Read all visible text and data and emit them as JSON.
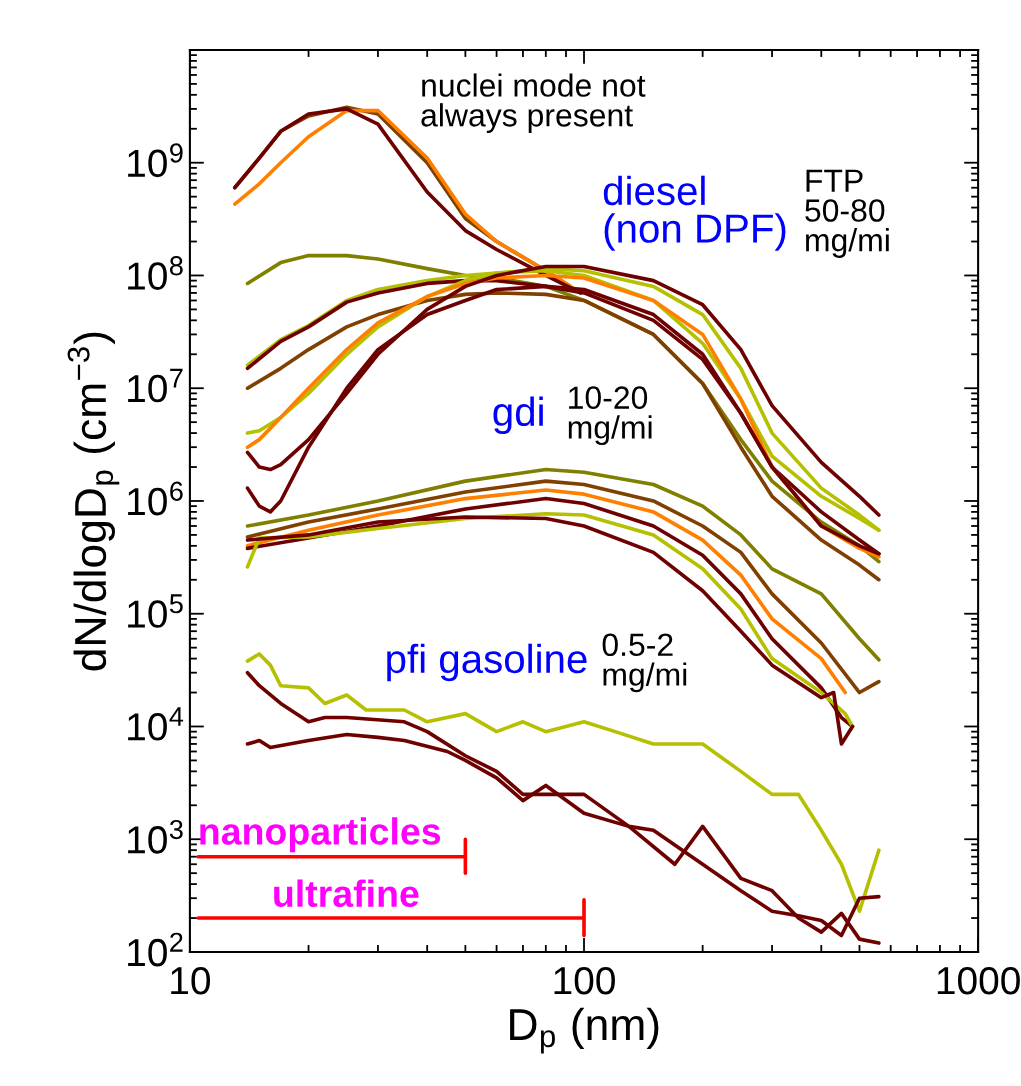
{
  "chart_data": {
    "type": "line",
    "log": "xy",
    "grid": false,
    "xlabel": "D$_{p}$ (nm)",
    "ylabel": "dN/dlogD$_{p}$ (cm$^{−3}$)",
    "xlim": [
      10,
      1000
    ],
    "xticks": [
      10,
      100,
      1000
    ],
    "ylim": [
      100,
      10000000000
    ],
    "yticks": [
      {
        "value": 100,
        "label": "10$^{2}$"
      },
      {
        "value": 1000,
        "label": "10$^{3}$"
      },
      {
        "value": 10000,
        "label": "10$^{4}$"
      },
      {
        "value": 100000,
        "label": "10$^{5}$"
      },
      {
        "value": 1000000,
        "label": "10$^{6}$"
      },
      {
        "value": 10000000,
        "label": "10$^{7}$"
      },
      {
        "value": 100000000,
        "label": "10$^{8}$"
      },
      {
        "value": 1000000000,
        "label": "10$^{9}$"
      }
    ],
    "series": [
      {
        "color": "#804000",
        "x": [
          13,
          15,
          17,
          20,
          25,
          30,
          40,
          50,
          60,
          80,
          98
        ],
        "values": [
          600000000.0,
          1100000000.0,
          1900000000.0,
          2600000000.0,
          3100000000.0,
          2700000000.0,
          1000000000.0,
          320000000.0,
          200000000.0,
          110000000.0,
          70000000.0
        ]
      },
      {
        "color": "#ff8000",
        "x": [
          13,
          15,
          17,
          20,
          25,
          30,
          40,
          50,
          60,
          80,
          98
        ],
        "values": [
          430000000.0,
          650000000.0,
          1000000000.0,
          1700000000.0,
          2900000000.0,
          2900000000.0,
          1100000000.0,
          350000000.0,
          200000000.0,
          110000000.0,
          70000000.0
        ]
      },
      {
        "color": "#6e0000",
        "x": [
          13,
          15,
          17,
          20,
          25,
          30,
          40,
          50,
          60,
          80,
          98
        ],
        "values": [
          600000000.0,
          1100000000.0,
          1900000000.0,
          2700000000.0,
          3000000000.0,
          2200000000.0,
          550000000.0,
          250000000.0,
          170000000.0,
          100000000.0,
          70000000.0
        ]
      },
      {
        "color": "#808000",
        "x": [
          14,
          17,
          20,
          25,
          30,
          40,
          50,
          60,
          80,
          100,
          150,
          200,
          250,
          300,
          400,
          500,
          560
        ],
        "values": [
          85000000.0,
          130000000.0,
          150000000.0,
          150000000.0,
          140000000.0,
          115000000.0,
          100000000.0,
          95000000.0,
          80000000.0,
          60000000.0,
          30000000.0,
          11000000.0,
          3500000.0,
          1500000.0,
          650000.0,
          400000.0,
          290000.0
        ]
      },
      {
        "color": "#b5c000",
        "x": [
          14,
          17,
          20,
          25,
          30,
          40,
          50,
          60,
          80,
          100,
          150,
          200,
          250,
          300,
          400,
          500,
          560
        ],
        "values": [
          16000000.0,
          27000000.0,
          36000000.0,
          60000000.0,
          75000000.0,
          90000000.0,
          100000000.0,
          105000000.0,
          110000000.0,
          100000000.0,
          60000000.0,
          25000000.0,
          8000000.0,
          2500000.0,
          1100000.0,
          700000.0,
          550000.0
        ]
      },
      {
        "color": "#6e0000",
        "x": [
          14,
          17,
          20,
          25,
          30,
          40,
          50,
          60,
          80,
          100,
          150,
          200,
          250,
          300,
          400,
          500,
          560
        ],
        "values": [
          15000000.0,
          26000000.0,
          35000000.0,
          58000000.0,
          70000000.0,
          85000000.0,
          90000000.0,
          90000000.0,
          80000000.0,
          70000000.0,
          40000000.0,
          18000000.0,
          6000000.0,
          2000000.0,
          800000.0,
          450000.0,
          340000.0
        ]
      },
      {
        "color": "#804000",
        "x": [
          14,
          17,
          20,
          25,
          30,
          40,
          50,
          60,
          80,
          100,
          150,
          200,
          250,
          300,
          400,
          500,
          560
        ],
        "values": [
          10000000.0,
          15000000.0,
          22000000.0,
          35000000.0,
          45000000.0,
          60000000.0,
          68000000.0,
          70000000.0,
          68000000.0,
          60000000.0,
          30000000.0,
          11000000.0,
          3000000.0,
          1100000.0,
          450000.0,
          270000.0,
          200000.0
        ]
      },
      {
        "color": "#b5c000",
        "x": [
          14,
          15,
          17,
          20,
          25,
          30,
          40,
          50,
          60,
          80,
          100,
          150,
          200,
          250,
          300,
          400,
          500,
          560
        ],
        "values": [
          4000000.0,
          4200000.0,
          5500000.0,
          9000000.0,
          20000000.0,
          35000000.0,
          65000000.0,
          90000000.0,
          105000000.0,
          115000000.0,
          110000000.0,
          80000000.0,
          45000000.0,
          15000000.0,
          4000000.0,
          1300000.0,
          750000.0,
          550000.0
        ]
      },
      {
        "color": "#ff8000",
        "x": [
          14,
          15,
          17,
          20,
          25,
          30,
          40,
          50,
          60,
          80,
          100,
          150,
          200,
          250,
          300,
          400,
          500,
          560
        ],
        "values": [
          3000000.0,
          3500000.0,
          5500000.0,
          10000000.0,
          22000000.0,
          38000000.0,
          65000000.0,
          85000000.0,
          95000000.0,
          100000000.0,
          95000000.0,
          60000000.0,
          30000000.0,
          8000000.0,
          2000000.0,
          600000.0,
          380000.0,
          320000.0
        ]
      },
      {
        "color": "#6e0000",
        "x": [
          14,
          15,
          16,
          17,
          20,
          25,
          30,
          40,
          50,
          60,
          80,
          100,
          150,
          200,
          250,
          300,
          400,
          500,
          560
        ],
        "values": [
          2700000.0,
          2000000.0,
          1900000.0,
          2100000.0,
          3500000.0,
          9000000.0,
          20000000.0,
          50000000.0,
          80000000.0,
          100000000.0,
          120000000.0,
          120000000.0,
          90000000.0,
          55000000.0,
          22000000.0,
          7000000.0,
          2200000.0,
          1100000.0,
          750000.0
        ]
      },
      {
        "color": "#6e0000",
        "x": [
          14,
          15,
          16,
          17,
          20,
          25,
          30,
          40,
          50,
          60,
          80,
          100,
          150,
          200,
          250,
          300,
          400,
          500,
          560
        ],
        "values": [
          1300000.0,
          900000.0,
          800000.0,
          1000000.0,
          3000000.0,
          10000000.0,
          22000000.0,
          45000000.0,
          60000000.0,
          75000000.0,
          80000000.0,
          75000000.0,
          45000000.0,
          20000000.0,
          6000000.0,
          2000000.0,
          600000.0,
          400000.0,
          340000.0
        ]
      },
      {
        "color": "#808000",
        "x": [
          14,
          20,
          30,
          50,
          80,
          100,
          150,
          200,
          250,
          300,
          400,
          500,
          560
        ],
        "values": [
          600000.0,
          750000.0,
          1000000.0,
          1500000.0,
          1900000.0,
          1800000.0,
          1400000.0,
          900000.0,
          500000.0,
          250000.0,
          150000.0,
          60000.0,
          39000.0
        ]
      },
      {
        "color": "#804000",
        "x": [
          14,
          20,
          30,
          50,
          80,
          100,
          150,
          200,
          250,
          300,
          400,
          500,
          560
        ],
        "values": [
          480000.0,
          650000.0,
          850000.0,
          1200000.0,
          1500000.0,
          1400000.0,
          1000000.0,
          600000.0,
          350000.0,
          150000.0,
          55000.0,
          20000.0,
          25000.0
        ]
      },
      {
        "color": "#ff8000",
        "x": [
          14,
          20,
          30,
          50,
          80,
          100,
          150,
          200,
          250,
          300,
          400,
          460
        ],
        "values": [
          400000.0,
          550000.0,
          750000.0,
          1050000.0,
          1250000.0,
          1150000.0,
          800000.0,
          450000.0,
          220000.0,
          90000.0,
          40000.0,
          20000.0
        ]
      },
      {
        "color": "#6e0000",
        "x": [
          14,
          20,
          30,
          50,
          80,
          100,
          150,
          200,
          250,
          300,
          400,
          450,
          480
        ],
        "values": [
          380000.0,
          470000.0,
          600000.0,
          850000.0,
          1050000.0,
          950000.0,
          600000.0,
          330000.0,
          150000.0,
          60000.0,
          22000.0,
          12000.0,
          10000.0
        ]
      },
      {
        "color": "#b5c000",
        "x": [
          14,
          15,
          20,
          30,
          50,
          80,
          100,
          150,
          200,
          250,
          300,
          400,
          460,
          480
        ],
        "values": [
          260000.0,
          470000.0,
          480000.0,
          570000.0,
          700000.0,
          770000.0,
          750000.0,
          500000.0,
          250000.0,
          110000.0,
          40000.0,
          20000.0,
          13000.0,
          10000.0
        ]
      },
      {
        "color": "#6e0000",
        "x": [
          14,
          20,
          30,
          50,
          80,
          100,
          150,
          200,
          250,
          300,
          400,
          430,
          450,
          480
        ],
        "values": [
          450000.0,
          500000.0,
          650000.0,
          720000.0,
          700000.0,
          600000.0,
          350000.0,
          160000.0,
          70000.0,
          35000.0,
          18000.0,
          20000.0,
          7000.0,
          10000.0
        ]
      },
      {
        "color": "#b5c000",
        "x": [
          14,
          15,
          16,
          17,
          20,
          22,
          25,
          28,
          35,
          40,
          50,
          60,
          70,
          80,
          100,
          120,
          150,
          200,
          250,
          300,
          350,
          400,
          450,
          500,
          560
        ],
        "values": [
          38000.0,
          44000.0,
          35000.0,
          23000.0,
          22000.0,
          16000.0,
          19000.0,
          14000.0,
          14000.0,
          11000.0,
          13000.0,
          9000.0,
          11000.0,
          9000.0,
          11000.0,
          9000.0,
          7000.0,
          7000.0,
          4000.0,
          2500.0,
          2500.0,
          1200.0,
          600,
          230,
          800
        ]
      },
      {
        "color": "#6e0000",
        "x": [
          14,
          15,
          17,
          20,
          22,
          25,
          35,
          40,
          50,
          60,
          70,
          80,
          100,
          130,
          150,
          200,
          250,
          300,
          350,
          400,
          450,
          500,
          560
        ],
        "values": [
          30000.0,
          23000.0,
          16000.0,
          11000.0,
          12000.0,
          12000.0,
          11000.0,
          9000.0,
          5500.0,
          4000.0,
          2500.0,
          2500.0,
          2500.0,
          1300.0,
          1200.0,
          600,
          350,
          230,
          210,
          190,
          140,
          300,
          310
        ]
      },
      {
        "color": "#6e0000",
        "x": [
          14,
          15,
          16,
          20,
          25,
          30,
          35,
          45,
          50,
          60,
          70,
          80,
          100,
          130,
          170,
          200,
          250,
          300,
          350,
          400,
          450,
          500,
          560
        ],
        "values": [
          7000.0,
          7500.0,
          6500.0,
          7500.0,
          8500.0,
          8000.0,
          7500.0,
          6000.0,
          5000.0,
          3500.0,
          2200.0,
          3000.0,
          1700.0,
          1300.0,
          600,
          1300.0,
          450,
          350,
          200,
          150,
          220,
          130,
          120
        ]
      },
      {
        "color": "#ff0000",
        "x": [
          10.5,
          50,
          50,
          50
        ],
        "values": [
          700,
          700,
          500,
          1000
        ]
      },
      {
        "color": "#ff0000",
        "x": [
          10.5,
          100,
          100,
          100
        ],
        "values": [
          200,
          200,
          140,
          290
        ]
      }
    ],
    "annotations": [
      "nuclei mode not\nalways present",
      "diesel\n(non DPF)",
      "FTP\n50-80\nmg/mi",
      "gdi",
      "10-20\nmg/mi",
      "pfi gasoline",
      "0.5-2\nmg/mi",
      "nanoparticles",
      "ultrafine"
    ]
  }
}
